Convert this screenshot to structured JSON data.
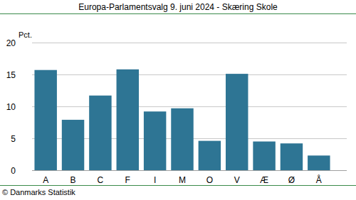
{
  "chart_data": {
    "type": "bar",
    "title": "Europa-Parlamentsvalg 9. juni 2024 - Skæring Skole",
    "ylabel": "Pct.",
    "categories": [
      "A",
      "B",
      "C",
      "F",
      "I",
      "M",
      "O",
      "V",
      "Æ",
      "Ø",
      "Å"
    ],
    "values": [
      15.7,
      7.9,
      11.7,
      15.8,
      9.2,
      9.7,
      4.6,
      15.1,
      4.5,
      4.2,
      2.3
    ],
    "color": "#2e7594",
    "ylim": [
      0,
      20
    ],
    "yticks": [
      0,
      5,
      10,
      15,
      20
    ],
    "grid": true,
    "annotations": [
      "© Danmarks Statistik"
    ]
  }
}
